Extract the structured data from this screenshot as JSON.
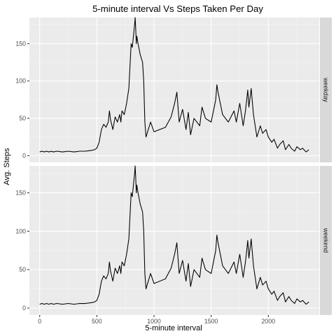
{
  "chart_data": {
    "type": "line",
    "title": "5-minute interval Vs Steps Taken Per Day",
    "xlabel": "5-minute interval",
    "ylabel": "Avg. Steps",
    "xlim": [
      -90,
      2445
    ],
    "ylim": [
      -9,
      185
    ],
    "x_ticks": [
      0,
      500,
      1000,
      1500,
      2000
    ],
    "y_ticks": [
      0,
      50,
      100,
      150
    ],
    "x_tick_labels": [
      "0",
      "500",
      "1000",
      "1500",
      "2000"
    ],
    "y_tick_labels": [
      "0",
      "50",
      "100",
      "150"
    ],
    "grid": true,
    "facets": [
      "weekday",
      "weekend"
    ],
    "series": [
      {
        "facet": "weekday",
        "x": [
          0,
          20,
          40,
          60,
          80,
          100,
          120,
          150,
          200,
          250,
          300,
          350,
          400,
          450,
          480,
          500,
          520,
          540,
          560,
          580,
          600,
          610,
          620,
          640,
          660,
          680,
          700,
          710,
          720,
          740,
          760,
          780,
          800,
          810,
          820,
          830,
          835,
          840,
          845,
          850,
          860,
          880,
          900,
          910,
          920,
          930,
          950,
          970,
          1000,
          1050,
          1100,
          1150,
          1180,
          1200,
          1220,
          1250,
          1280,
          1300,
          1320,
          1350,
          1400,
          1420,
          1450,
          1500,
          1520,
          1540,
          1550,
          1560,
          1600,
          1650,
          1700,
          1720,
          1750,
          1780,
          1800,
          1820,
          1830,
          1850,
          1870,
          1900,
          1930,
          1950,
          1980,
          2000,
          2030,
          2050,
          2080,
          2100,
          2130,
          2150,
          2180,
          2200,
          2230,
          2250,
          2280,
          2300,
          2330,
          2355
        ],
        "y": [
          5,
          6,
          5,
          6,
          5,
          6,
          5,
          6,
          5,
          6,
          5,
          6,
          6,
          7,
          8,
          10,
          18,
          35,
          42,
          38,
          45,
          60,
          48,
          35,
          52,
          45,
          55,
          45,
          60,
          55,
          70,
          90,
          150,
          145,
          160,
          175,
          185,
          170,
          150,
          160,
          150,
          135,
          125,
          100,
          45,
          25,
          35,
          45,
          32,
          35,
          38,
          52,
          70,
          85,
          45,
          62,
          35,
          58,
          28,
          50,
          40,
          65,
          50,
          45,
          60,
          75,
          95,
          85,
          55,
          45,
          60,
          45,
          70,
          40,
          60,
          88,
          65,
          90,
          55,
          25,
          40,
          30,
          35,
          25,
          18,
          22,
          10,
          15,
          20,
          8,
          15,
          10,
          6,
          12,
          8,
          10,
          5,
          8
        ]
      },
      {
        "facet": "weekend",
        "x": [
          0,
          20,
          40,
          60,
          80,
          100,
          120,
          150,
          200,
          250,
          300,
          350,
          400,
          450,
          480,
          500,
          520,
          540,
          560,
          580,
          600,
          610,
          620,
          640,
          660,
          680,
          700,
          710,
          720,
          740,
          760,
          780,
          800,
          810,
          820,
          830,
          835,
          840,
          845,
          850,
          860,
          880,
          900,
          910,
          920,
          930,
          950,
          970,
          1000,
          1050,
          1100,
          1150,
          1180,
          1200,
          1220,
          1250,
          1280,
          1300,
          1320,
          1350,
          1400,
          1420,
          1450,
          1500,
          1520,
          1540,
          1550,
          1560,
          1600,
          1650,
          1700,
          1720,
          1750,
          1780,
          1800,
          1820,
          1830,
          1850,
          1870,
          1900,
          1930,
          1950,
          1980,
          2000,
          2030,
          2050,
          2080,
          2100,
          2130,
          2150,
          2180,
          2200,
          2230,
          2250,
          2280,
          2300,
          2330,
          2355
        ],
        "y": [
          5,
          6,
          5,
          6,
          5,
          6,
          5,
          6,
          5,
          6,
          5,
          6,
          6,
          7,
          8,
          10,
          18,
          35,
          42,
          38,
          45,
          60,
          48,
          35,
          52,
          45,
          55,
          45,
          60,
          55,
          70,
          90,
          150,
          145,
          160,
          175,
          185,
          170,
          150,
          160,
          150,
          135,
          125,
          100,
          45,
          25,
          35,
          45,
          32,
          35,
          38,
          52,
          70,
          85,
          45,
          62,
          35,
          58,
          28,
          50,
          40,
          65,
          50,
          45,
          60,
          75,
          95,
          85,
          55,
          45,
          60,
          45,
          70,
          40,
          60,
          88,
          65,
          90,
          55,
          25,
          40,
          30,
          35,
          25,
          18,
          22,
          10,
          15,
          20,
          8,
          15,
          10,
          6,
          12,
          8,
          10,
          5,
          8
        ]
      }
    ],
    "colors": {
      "panel_background": "#ebebeb",
      "grid_major": "#ffffff",
      "strip_background": "#d9d9d9",
      "line": "#000000"
    }
  }
}
